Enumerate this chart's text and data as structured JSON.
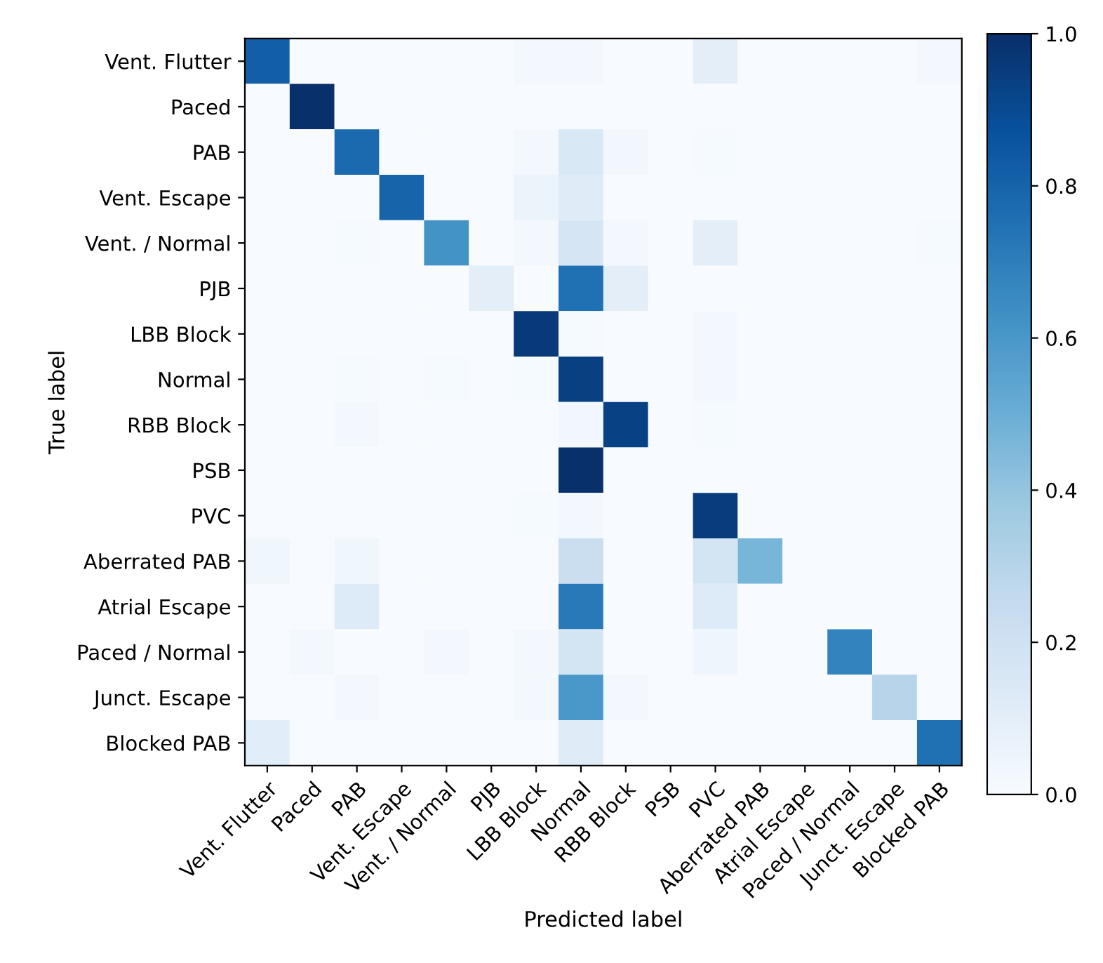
{
  "chart_data": {
    "type": "heatmap",
    "xlabel": "Predicted label",
    "ylabel": "True label",
    "categories": [
      "Vent. Flutter",
      "Paced",
      "PAB",
      "Vent. Escape",
      "Vent. / Normal",
      "PJB",
      "LBB Block",
      "Normal",
      "RBB Block",
      "PSB",
      "PVC",
      "Aberrated PAB",
      "Atrial Escape",
      "Paced / Normal",
      "Junct. Escape",
      "Blocked PAB"
    ],
    "y_categories": [
      "Vent. Flutter",
      "Paced",
      "PAB",
      "Vent. Escape",
      "Vent. / Normal",
      "PJB",
      "LBB Block",
      "Normal",
      "RBB Block",
      "PSB",
      "PVC",
      "Aberrated PAB",
      "Atrial Escape",
      "Paced / Normal",
      "Junct. Escape",
      "Blocked PAB"
    ],
    "cells": [
      [
        0.82,
        0,
        0,
        0,
        0,
        0,
        0.02,
        0.02,
        0,
        0,
        0.1,
        0,
        0,
        0,
        0,
        0.02
      ],
      [
        0,
        1.0,
        0,
        0,
        0,
        0,
        0,
        0,
        0,
        0,
        0,
        0,
        0,
        0,
        0,
        0
      ],
      [
        0,
        0,
        0.78,
        0,
        0,
        0,
        0.02,
        0.15,
        0.03,
        0,
        0.01,
        0,
        0,
        0,
        0,
        0
      ],
      [
        0,
        0,
        0,
        0.8,
        0,
        0,
        0.06,
        0.12,
        0,
        0,
        0,
        0,
        0,
        0,
        0,
        0
      ],
      [
        0,
        0,
        0.01,
        0,
        0.62,
        0,
        0.02,
        0.17,
        0.02,
        0,
        0.1,
        0,
        0,
        0,
        0,
        0.01
      ],
      [
        0,
        0,
        0,
        0,
        0,
        0.1,
        0,
        0.75,
        0.1,
        0,
        0,
        0,
        0,
        0,
        0,
        0
      ],
      [
        0,
        0,
        0,
        0,
        0,
        0,
        0.96,
        0.01,
        0,
        0,
        0.02,
        0,
        0,
        0,
        0,
        0
      ],
      [
        0,
        0,
        0.01,
        0,
        0.01,
        0,
        0.01,
        0.94,
        0,
        0,
        0.02,
        0,
        0,
        0,
        0,
        0
      ],
      [
        0,
        0,
        0.02,
        0,
        0,
        0,
        0,
        0.03,
        0.93,
        0,
        0.01,
        0,
        0,
        0,
        0,
        0
      ],
      [
        0,
        0,
        0,
        0,
        0,
        0,
        0,
        1.0,
        0,
        0,
        0,
        0,
        0,
        0,
        0,
        0
      ],
      [
        0,
        0,
        0,
        0,
        0,
        0,
        0.01,
        0.02,
        0,
        0,
        0.95,
        0,
        0,
        0,
        0,
        0
      ],
      [
        0.04,
        0,
        0.04,
        0,
        0,
        0,
        0,
        0.23,
        0,
        0,
        0.18,
        0.47,
        0,
        0,
        0,
        0
      ],
      [
        0,
        0,
        0.13,
        0,
        0,
        0,
        0,
        0.72,
        0,
        0,
        0.13,
        0,
        0,
        0,
        0,
        0
      ],
      [
        0,
        0.02,
        0,
        0,
        0.02,
        0,
        0.02,
        0.18,
        0,
        0,
        0.05,
        0,
        0,
        0.68,
        0,
        0
      ],
      [
        0,
        0,
        0.02,
        0,
        0,
        0,
        0.02,
        0.6,
        0.02,
        0,
        0,
        0,
        0,
        0,
        0.3,
        0
      ],
      [
        0.11,
        0,
        0,
        0,
        0,
        0,
        0,
        0.12,
        0,
        0,
        0,
        0,
        0,
        0,
        0,
        0.75
      ]
    ],
    "clim": [
      0,
      1
    ],
    "cticks": [
      {
        "value": 0,
        "label": "0.0"
      },
      {
        "value": 0.2,
        "label": "0.2"
      },
      {
        "value": 0.4,
        "label": "0.4"
      },
      {
        "value": 0.6,
        "label": "0.6"
      },
      {
        "value": 0.8,
        "label": "0.8"
      },
      {
        "value": 1,
        "label": "1.0"
      }
    ],
    "grid": false
  }
}
